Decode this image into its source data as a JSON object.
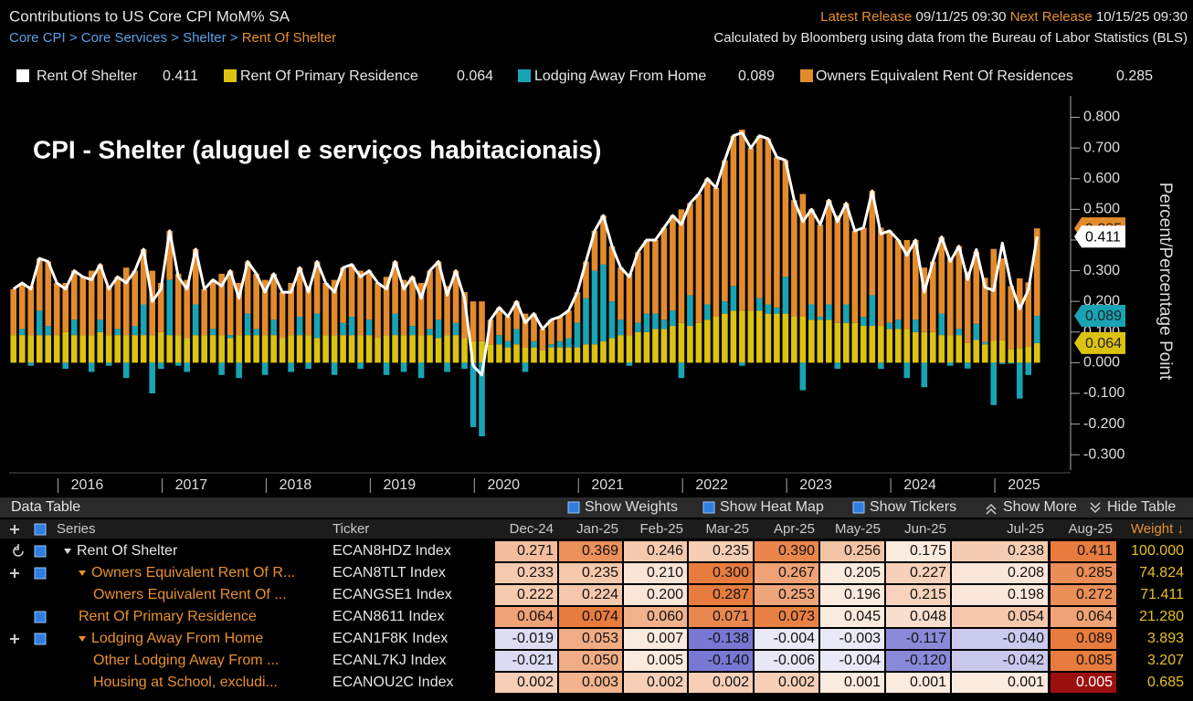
{
  "header": {
    "title": "Contributions to US Core CPI MoM% SA",
    "breadcrumb": "Core CPI > Core Services > Shelter >",
    "breadcrumb_current": "Rent Of Shelter",
    "latest_release_label": "Latest Release",
    "latest_release": "09/11/25 09:30",
    "next_release_label": "Next Release",
    "next_release": "10/15/25 09:30",
    "source": "Calculated by Bloomberg using data from the Bureau of Labor Statistics (BLS)"
  },
  "chart_data": {
    "type": "bar",
    "annotation": "CPI - Shelter (aluguel e serviços habitacionais)",
    "ylabel": "Percent/Percentage Point",
    "categories": [
      null,
      null,
      null,
      "2016",
      null,
      null,
      null,
      null,
      null,
      null,
      null,
      null,
      null,
      null,
      null,
      "2017",
      null,
      null,
      null,
      null,
      null,
      null,
      null,
      null,
      null,
      null,
      null,
      "2018",
      null,
      null,
      null,
      null,
      null,
      null,
      null,
      null,
      null,
      null,
      null,
      "2019",
      null,
      null,
      null,
      null,
      null,
      null,
      null,
      null,
      null,
      null,
      null,
      "2020",
      null,
      null,
      null,
      null,
      null,
      null,
      null,
      null,
      null,
      null,
      null,
      "2021",
      null,
      null,
      null,
      null,
      null,
      null,
      null,
      null,
      null,
      null,
      null,
      "2022",
      null,
      null,
      null,
      null,
      null,
      null,
      null,
      null,
      null,
      null,
      null,
      "2023",
      null,
      null,
      null,
      null,
      null,
      null,
      null,
      null,
      null,
      null,
      null,
      "2024",
      null,
      null,
      null,
      null,
      null,
      null,
      null,
      null,
      null,
      null,
      null,
      "2025",
      null,
      null,
      null,
      null,
      null,
      null,
      null
    ],
    "ylim": [
      -0.35,
      0.87
    ],
    "yticks": [
      {
        "value": -0.3,
        "label": "-0.300"
      },
      {
        "value": -0.2,
        "label": "-0.200"
      },
      {
        "value": -0.1,
        "label": "-0.100"
      },
      {
        "value": 0,
        "label": "0.000"
      },
      {
        "value": 0.1,
        "label": "0.100"
      },
      {
        "value": 0.2,
        "label": "0.200"
      },
      {
        "value": 0.3,
        "label": "0.300"
      },
      {
        "value": 0.4,
        "label": "0.400"
      },
      {
        "value": 0.5,
        "label": "0.500"
      },
      {
        "value": 0.6,
        "label": "0.600"
      },
      {
        "value": 0.7,
        "label": "0.700"
      },
      {
        "value": 0.8,
        "label": "0.800"
      }
    ],
    "series": [
      {
        "name": "Rent Of Shelter",
        "type": "line",
        "color": "#ffffff",
        "values": [
          0.24,
          0.26,
          0.24,
          0.34,
          0.33,
          0.26,
          0.24,
          0.3,
          0.28,
          0.27,
          0.32,
          0.24,
          0.28,
          0.26,
          0.3,
          0.37,
          0.2,
          0.24,
          0.43,
          0.28,
          0.24,
          0.37,
          0.24,
          0.27,
          0.25,
          0.3,
          0.21,
          0.33,
          0.29,
          0.23,
          0.29,
          0.23,
          0.23,
          0.31,
          0.23,
          0.33,
          0.26,
          0.23,
          0.31,
          0.32,
          0.28,
          0.3,
          0.26,
          0.24,
          0.33,
          0.24,
          0.28,
          0.21,
          0.3,
          0.33,
          0.22,
          0.3,
          0.21,
          -0.01,
          -0.04,
          0.14,
          0.18,
          0.15,
          0.2,
          0.13,
          0.16,
          0.11,
          0.14,
          0.15,
          0.17,
          0.23,
          0.33,
          0.43,
          0.48,
          0.38,
          0.31,
          0.28,
          0.36,
          0.4,
          0.4,
          0.44,
          0.48,
          0.45,
          0.52,
          0.55,
          0.6,
          0.57,
          0.66,
          0.74,
          0.75,
          0.7,
          0.74,
          0.73,
          0.67,
          0.66,
          0.53,
          0.46,
          0.5,
          0.45,
          0.53,
          0.46,
          0.52,
          0.43,
          0.44,
          0.56,
          0.42,
          0.43,
          0.4,
          0.35,
          0.4,
          0.23,
          0.33,
          0.41,
          0.33,
          0.38,
          0.271,
          0.369,
          0.246,
          0.235,
          0.39,
          0.256,
          0.175,
          0.238,
          0.411
        ]
      },
      {
        "name": "Rent Of Primary Residence",
        "type": "bar",
        "color": "#dcc312",
        "values": [
          0.09,
          0.09,
          0.09,
          0.09,
          0.09,
          0.09,
          0.1,
          0.09,
          0.09,
          0.09,
          0.1,
          0.09,
          0.09,
          0.09,
          0.09,
          0.09,
          0.09,
          0.1,
          0.09,
          0.09,
          0.08,
          0.09,
          0.09,
          0.09,
          0.09,
          0.08,
          0.09,
          0.09,
          0.09,
          0.09,
          0.09,
          0.08,
          0.09,
          0.09,
          0.09,
          0.08,
          0.09,
          0.09,
          0.09,
          0.09,
          0.09,
          0.09,
          0.08,
          0.09,
          0.09,
          0.09,
          0.09,
          0.09,
          0.09,
          0.08,
          0.09,
          0.09,
          0.08,
          0.07,
          0.07,
          0.06,
          0.06,
          0.05,
          0.06,
          0.05,
          0.05,
          0.04,
          0.05,
          0.05,
          0.05,
          0.05,
          0.06,
          0.06,
          0.07,
          0.08,
          0.09,
          0.09,
          0.1,
          0.1,
          0.11,
          0.11,
          0.12,
          0.13,
          0.12,
          0.13,
          0.14,
          0.15,
          0.16,
          0.17,
          0.17,
          0.17,
          0.17,
          0.16,
          0.16,
          0.16,
          0.15,
          0.15,
          0.14,
          0.14,
          0.14,
          0.13,
          0.13,
          0.13,
          0.12,
          0.12,
          0.12,
          0.11,
          0.11,
          0.11,
          0.1,
          0.1,
          0.1,
          0.09,
          0.09,
          0.09,
          0.064,
          0.074,
          0.06,
          0.071,
          0.073,
          0.045,
          0.048,
          0.054,
          0.064
        ]
      },
      {
        "name": "Lodging Away From Home",
        "type": "bar",
        "color": "#18a4b4",
        "values": [
          0.0,
          0.02,
          -0.01,
          0.08,
          0.03,
          0.0,
          -0.02,
          0.05,
          0.0,
          -0.03,
          0.04,
          -0.01,
          0.02,
          -0.05,
          0.03,
          0.1,
          -0.1,
          -0.02,
          0.18,
          -0.01,
          -0.03,
          0.1,
          0.0,
          0.02,
          -0.04,
          0.01,
          -0.05,
          0.07,
          0.02,
          -0.04,
          0.05,
          0.0,
          -0.03,
          0.06,
          -0.02,
          0.08,
          0.0,
          -0.04,
          0.04,
          0.06,
          -0.02,
          0.05,
          0.0,
          -0.04,
          0.07,
          -0.03,
          0.03,
          -0.05,
          0.02,
          0.06,
          -0.03,
          0.04,
          -0.02,
          -0.21,
          -0.24,
          0.0,
          0.03,
          0.02,
          0.05,
          -0.03,
          0.02,
          0.0,
          0.01,
          0.02,
          0.03,
          0.08,
          0.15,
          0.24,
          0.25,
          0.12,
          0.05,
          -0.01,
          0.03,
          0.06,
          0.05,
          0.03,
          0.05,
          -0.05,
          0.1,
          0.0,
          0.05,
          0.0,
          0.04,
          0.08,
          -0.01,
          0.0,
          0.04,
          0.03,
          0.02,
          0.12,
          0.0,
          -0.09,
          0.05,
          0.01,
          0.05,
          -0.02,
          0.06,
          0.0,
          0.03,
          0.1,
          -0.02,
          0.02,
          0.03,
          -0.05,
          0.04,
          -0.08,
          0.0,
          0.07,
          -0.01,
          0.02,
          -0.019,
          0.053,
          0.007,
          -0.138,
          -0.004,
          -0.003,
          -0.117,
          -0.04,
          0.089
        ]
      },
      {
        "name": "Owners Equivalent Rent Of Residences",
        "type": "bar",
        "color": "#e38b2c",
        "values": [
          0.15,
          0.15,
          0.16,
          0.17,
          0.21,
          0.17,
          0.16,
          0.16,
          0.19,
          0.21,
          0.18,
          0.16,
          0.17,
          0.22,
          0.18,
          0.18,
          0.21,
          0.16,
          0.16,
          0.2,
          0.19,
          0.18,
          0.15,
          0.16,
          0.2,
          0.21,
          0.17,
          0.17,
          0.18,
          0.18,
          0.15,
          0.15,
          0.17,
          0.16,
          0.16,
          0.17,
          0.17,
          0.18,
          0.18,
          0.17,
          0.21,
          0.16,
          0.18,
          0.19,
          0.17,
          0.18,
          0.16,
          0.17,
          0.19,
          0.19,
          0.16,
          0.17,
          0.15,
          0.13,
          0.13,
          0.08,
          0.09,
          0.08,
          0.09,
          0.11,
          0.09,
          0.07,
          0.08,
          0.08,
          0.09,
          0.1,
          0.12,
          0.13,
          0.16,
          0.18,
          0.17,
          0.2,
          0.23,
          0.24,
          0.24,
          0.3,
          0.31,
          0.37,
          0.3,
          0.42,
          0.41,
          0.42,
          0.46,
          0.49,
          0.59,
          0.53,
          0.53,
          0.54,
          0.49,
          0.38,
          0.38,
          0.4,
          0.31,
          0.3,
          0.34,
          0.35,
          0.33,
          0.3,
          0.29,
          0.34,
          0.32,
          0.3,
          0.26,
          0.29,
          0.26,
          0.21,
          0.23,
          0.25,
          0.25,
          0.27,
          0.233,
          0.235,
          0.21,
          0.3,
          0.267,
          0.205,
          0.227,
          0.208,
          0.285
        ]
      }
    ]
  },
  "table": {
    "title": "Data Table",
    "buttons": [
      "Show Weights",
      "Show Heat Map",
      "Show Tickers",
      "Show More",
      "Hide Table"
    ],
    "columns": [
      "Series",
      "Ticker",
      "Dec-24",
      "Jan-25",
      "Feb-25",
      "Mar-25",
      "Apr-25",
      "May-25",
      "Jun-25",
      "Jul-25",
      "Aug-25",
      "Weight ↓"
    ],
    "rows": [
      [
        "Rent Of Shelter",
        "ECAN8HDZ Index",
        "0.271",
        "0.369",
        "0.246",
        "0.235",
        "0.390",
        "0.256",
        "0.175",
        "0.238",
        "0.411",
        "100.000"
      ],
      [
        "Owners Equivalent Rent Of R...",
        "ECAN8TLT Index",
        "0.233",
        "0.235",
        "0.210",
        "0.300",
        "0.267",
        "0.205",
        "0.227",
        "0.208",
        "0.285",
        "74.824"
      ],
      [
        "Owners Equivalent Rent Of ...",
        "ECANGSE1 Index",
        "0.222",
        "0.224",
        "0.200",
        "0.287",
        "0.253",
        "0.196",
        "0.215",
        "0.198",
        "0.272",
        "71.411"
      ],
      [
        "Rent Of Primary Residence",
        "ECAN8611 Index",
        "0.064",
        "0.074",
        "0.060",
        "0.071",
        "0.073",
        "0.045",
        "0.048",
        "0.054",
        "0.064",
        "21.280"
      ],
      [
        "Lodging Away From Home",
        "ECAN1F8K Index",
        "-0.019",
        "0.053",
        "0.007",
        "-0.138",
        "-0.004",
        "-0.003",
        "-0.117",
        "-0.040",
        "0.089",
        "3.893"
      ],
      [
        "Other Lodging Away From ...",
        "ECANL7KJ Index",
        "-0.021",
        "0.050",
        "0.005",
        "-0.140",
        "-0.006",
        "-0.004",
        "-0.120",
        "-0.042",
        "0.085",
        "3.207"
      ],
      [
        "Housing at School, excludi...",
        "ECANOU2C Index",
        "0.002",
        "0.003",
        "0.002",
        "0.002",
        "0.002",
        "0.001",
        "0.001",
        "0.001",
        "0.005",
        "0.685"
      ]
    ]
  }
}
